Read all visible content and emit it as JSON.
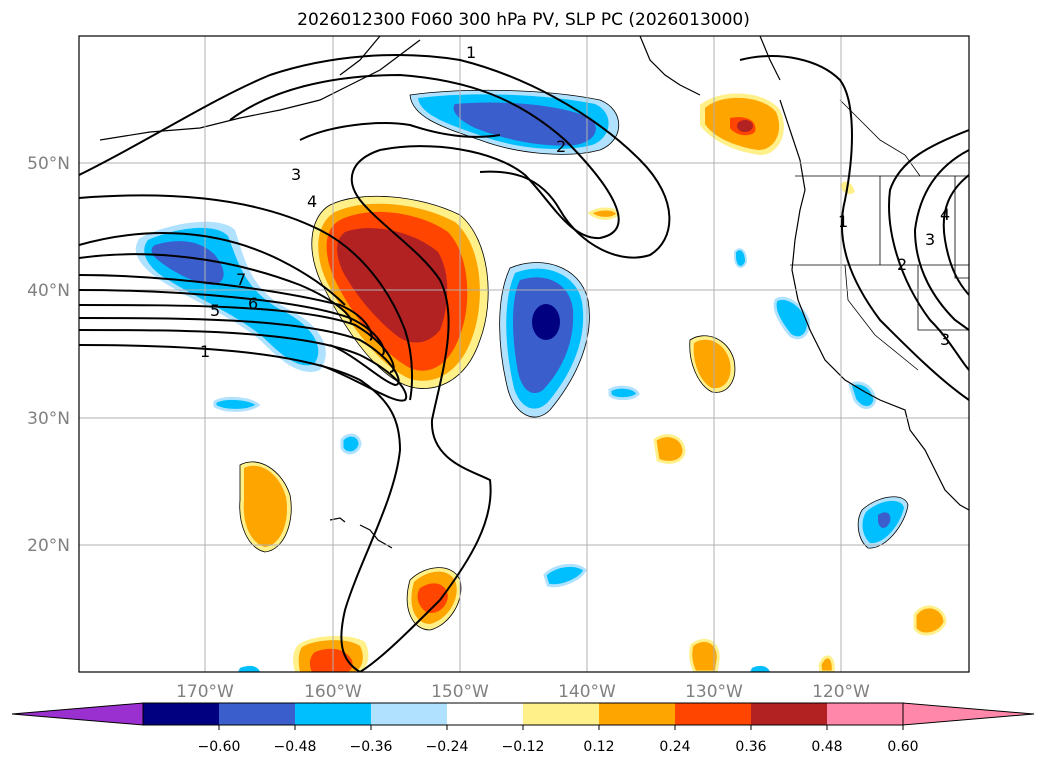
{
  "title": "2026012300 F060 300 hPa PV, SLP PC (2026013000)",
  "lat_labels": [
    "50°N",
    "40°N",
    "30°N",
    "20°N"
  ],
  "lon_labels": [
    "170°W",
    "160°W",
    "150°W",
    "140°W",
    "130°W",
    "120°W"
  ],
  "contour_labels": [
    "1",
    "2",
    "3",
    "4",
    "7",
    "6",
    "5",
    "1",
    "1",
    "2",
    "3",
    "4",
    "3"
  ],
  "colorbar": {
    "ticks": [
      "−0.60",
      "−0.48",
      "−0.36",
      "−0.24",
      "−0.12",
      "0.12",
      "0.24",
      "0.36",
      "0.48",
      "0.60"
    ],
    "colors": [
      "#9b30d0",
      "#000080",
      "#3a5fcd",
      "#00bfff",
      "#b0e2ff",
      "#ffffff",
      "#fff08a",
      "#ffa500",
      "#ff4500",
      "#b22222",
      "#ff88aa",
      "#ff88aa"
    ]
  }
}
